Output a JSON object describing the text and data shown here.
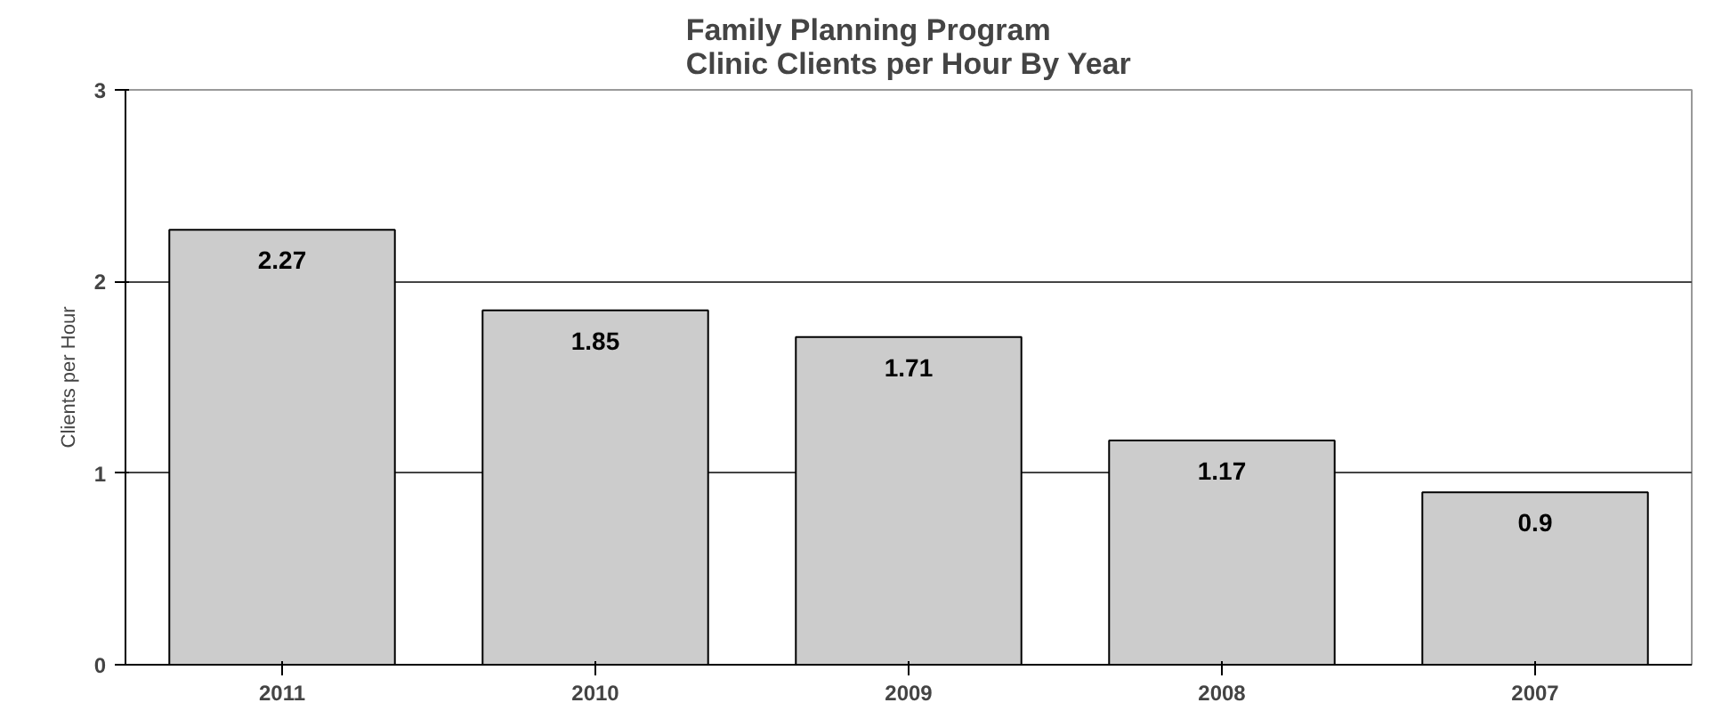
{
  "chart_data": {
    "type": "bar",
    "title": "Family Planning Program\nClinic Clients per Hour By Year",
    "ylabel": "Clients per Hour",
    "categories": [
      "2011",
      "2010",
      "2009",
      "2008",
      "2007"
    ],
    "values": [
      2.27,
      1.85,
      1.71,
      1.17,
      0.9
    ],
    "color": "#cccccc",
    "ylim": [
      0,
      3
    ],
    "yticks": [
      0,
      1,
      2,
      3
    ],
    "grid": "y",
    "data_labels": true
  }
}
